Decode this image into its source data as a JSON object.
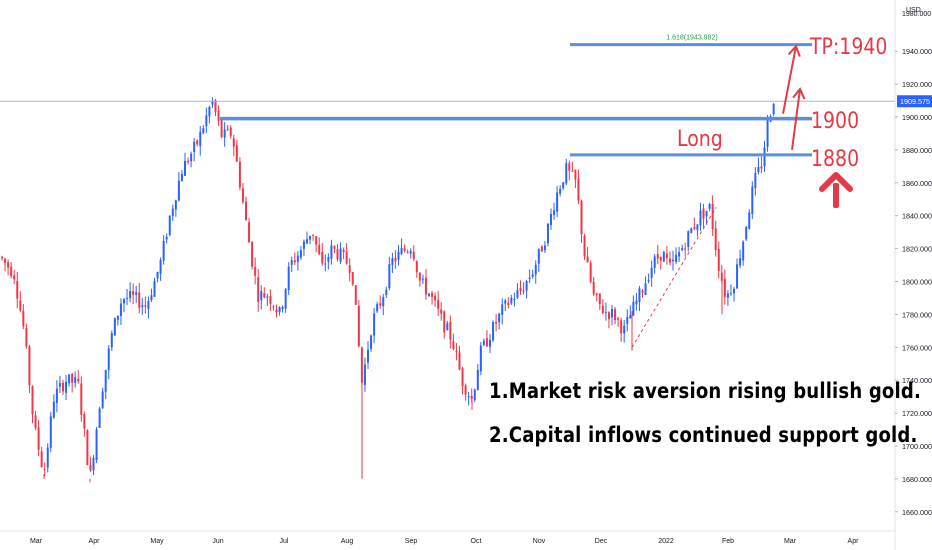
{
  "chart_data": {
    "type": "candlestick",
    "currency": "USD",
    "ylim": [
      1655,
      1985
    ],
    "y_ticks": [
      1660,
      1680,
      1700,
      1720,
      1740,
      1760,
      1780,
      1800,
      1820,
      1840,
      1860,
      1880,
      1900,
      1920,
      1940,
      1960
    ],
    "y_tick_labels": [
      "1660.000",
      "1680.000",
      "1700.000",
      "1720.000",
      "1740.000",
      "1760.000",
      "1780.000",
      "1800.000",
      "1820.000",
      "1840.000",
      "1860.000",
      "1880.000",
      "1900.000",
      "1920.000",
      "1940.000",
      "1960.000"
    ],
    "top_partial_label": "1980.000",
    "x_labels": [
      "Mar",
      "Apr",
      "May",
      "Jun",
      "Jul",
      "Aug",
      "Sep",
      "Oct",
      "Nov",
      "Dec",
      "2022",
      "Feb",
      "Mar",
      "Apr"
    ],
    "last_price": 1909.575,
    "last_price_label": "1909.575",
    "fib_label": "1.618(1943.982)",
    "fib_level": 1943.982,
    "resistance_level": 1899,
    "support_level": 1877,
    "annotations": {
      "tp": "TP:1940",
      "level_1900": "1900",
      "level_1880": "1880",
      "long": "Long"
    },
    "notes": [
      "1.Market risk aversion rising bullish gold.",
      "2.Capital inflows continued support gold."
    ],
    "key_prices": [
      {
        "period": "Mar",
        "price": 1730
      },
      {
        "period": "Apr",
        "price": 1680
      },
      {
        "period": "May",
        "price": 1790
      },
      {
        "period": "Jun",
        "price": 1910
      },
      {
        "period": "Jul",
        "price": 1790
      },
      {
        "period": "Aug",
        "price": 1820
      },
      {
        "period": "Aug",
        "price": 1685
      },
      {
        "period": "Sep",
        "price": 1830
      },
      {
        "period": "Oct",
        "price": 1725
      },
      {
        "period": "Nov",
        "price": 1870
      },
      {
        "period": "Dec",
        "price": 1770
      },
      {
        "period": "2022",
        "price": 1830
      },
      {
        "period": "Feb",
        "price": 1790
      },
      {
        "period": "Mar",
        "price": 1910
      }
    ],
    "colors": {
      "up": "#2962ff",
      "down": "#f23645",
      "annotation": "#e53946",
      "line": "#5b8fd6",
      "price_tag": "#2962ff"
    }
  }
}
